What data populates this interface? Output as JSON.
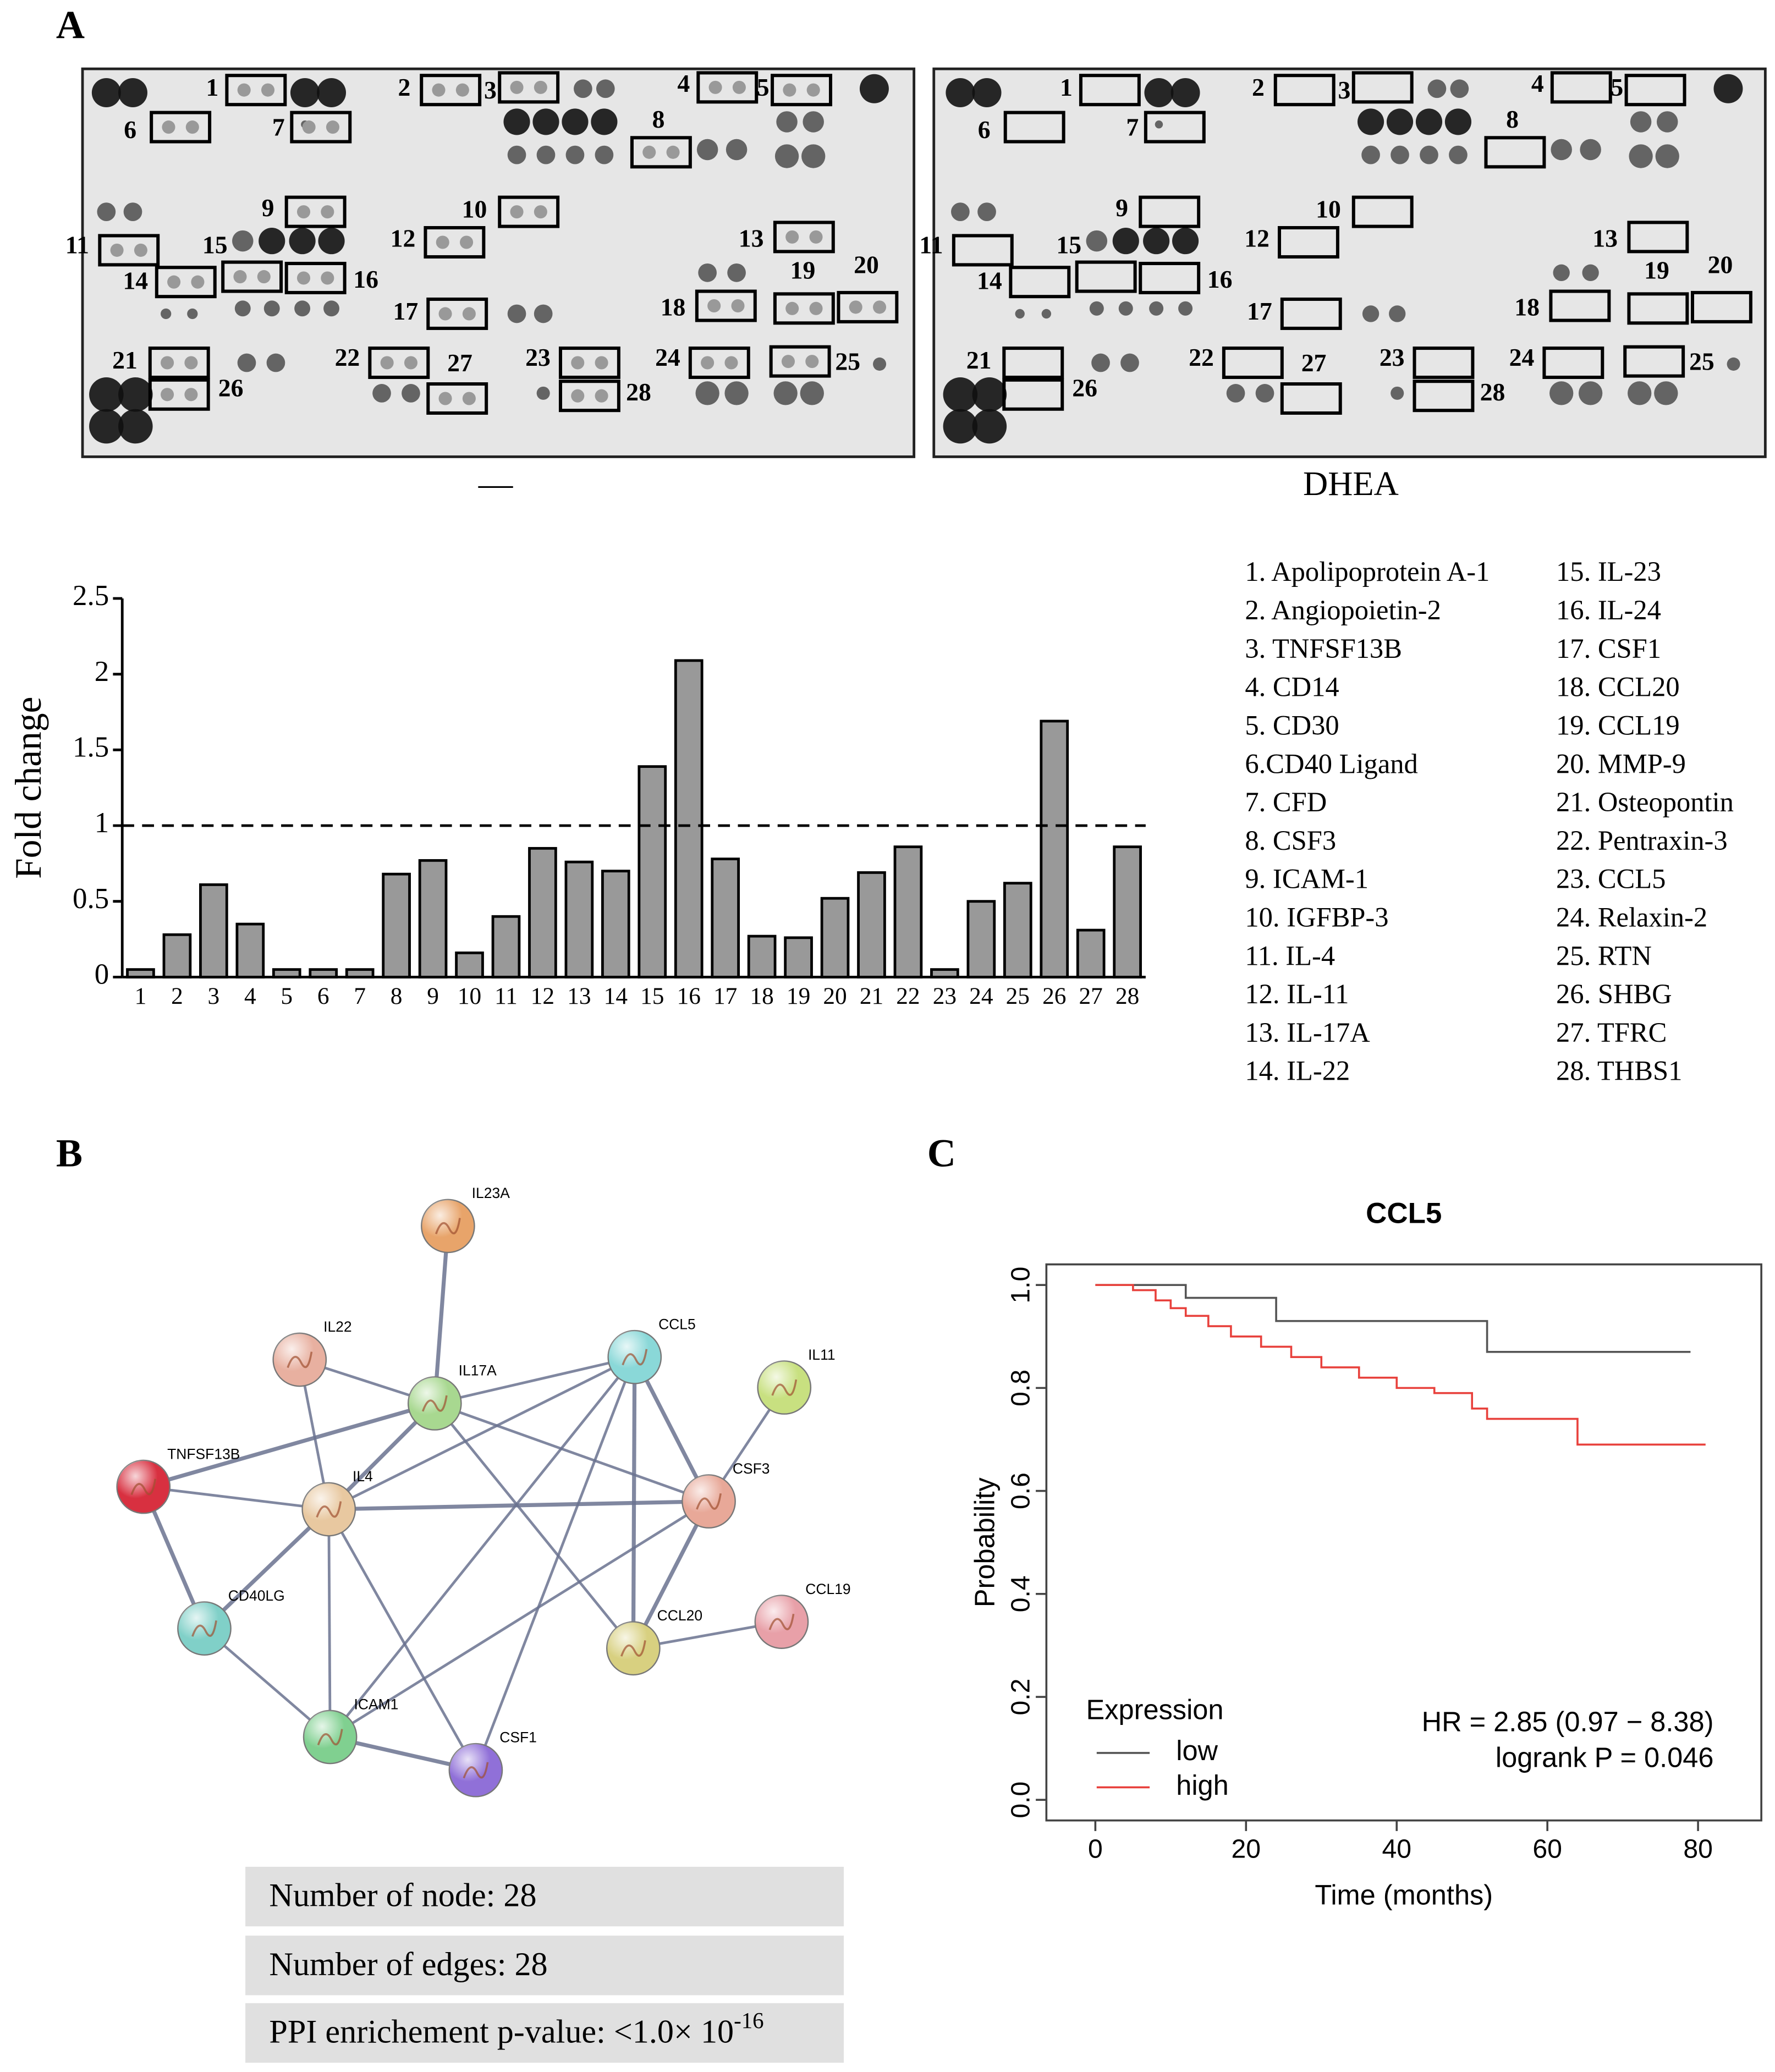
{
  "panel_labels": [
    "A",
    "B",
    "C"
  ],
  "array": {
    "conditions": [
      "—",
      "DHEA"
    ],
    "spot_labels": [
      "1",
      "2",
      "3",
      "4",
      "5",
      "6",
      "7",
      "8",
      "9",
      "10",
      "11",
      "12",
      "13",
      "14",
      "15",
      "16",
      "17",
      "18",
      "19",
      "20",
      "21",
      "22",
      "23",
      "24",
      "25",
      "26",
      "27",
      "28"
    ]
  },
  "chart_data": [
    {
      "type": "bar",
      "ylabel": "Fold change",
      "categories": [
        "1",
        "2",
        "3",
        "4",
        "5",
        "6",
        "7",
        "8",
        "9",
        "10",
        "11",
        "12",
        "13",
        "14",
        "15",
        "16",
        "17",
        "18",
        "19",
        "20",
        "21",
        "22",
        "23",
        "24",
        "25",
        "26",
        "27",
        "28"
      ],
      "values": [
        0.05,
        0.28,
        0.61,
        0.35,
        0.05,
        0.05,
        0.05,
        0.68,
        0.77,
        0.16,
        0.4,
        0.85,
        0.76,
        0.7,
        1.39,
        2.09,
        0.78,
        0.27,
        0.26,
        0.52,
        0.69,
        0.86,
        0.05,
        0.5,
        0.62,
        1.69,
        0.31,
        0.86
      ],
      "color": "#999999",
      "ylim": [
        0,
        2.5
      ],
      "yticks": [
        0,
        0.5,
        1,
        1.5,
        2,
        2.5
      ],
      "reference_line": 1
    },
    {
      "type": "line",
      "title": "CCL5",
      "xlabel": "Time (months)",
      "ylabel": "Probability",
      "legend_title": "Expression",
      "legend": "bottom-left",
      "series": [
        {
          "name": "low",
          "color": "#555555",
          "x": [
            0,
            12,
            12,
            24,
            24,
            52,
            52,
            79
          ],
          "values": [
            1,
            1,
            0.975,
            0.975,
            0.93,
            0.93,
            0.87,
            0.87
          ]
        },
        {
          "name": "high",
          "color": "#e8413c",
          "x": [
            0,
            5,
            5,
            8,
            8,
            10,
            10,
            12,
            12,
            15,
            15,
            18,
            18,
            22,
            22,
            26,
            26,
            30,
            30,
            35,
            35,
            40,
            40,
            45,
            45,
            50,
            50,
            52,
            52,
            64,
            64,
            81
          ],
          "values": [
            1,
            1,
            0.99,
            0.99,
            0.97,
            0.97,
            0.955,
            0.955,
            0.94,
            0.94,
            0.92,
            0.92,
            0.9,
            0.9,
            0.88,
            0.88,
            0.86,
            0.86,
            0.84,
            0.84,
            0.82,
            0.82,
            0.8,
            0.8,
            0.79,
            0.79,
            0.76,
            0.76,
            0.74,
            0.74,
            0.69,
            0.69
          ]
        }
      ],
      "xlim": [
        -6.5,
        88.4
      ],
      "xticks": [
        0,
        20,
        40,
        60,
        80
      ],
      "ylim": [
        -0.04,
        1.04
      ],
      "yticks": [
        {
          "value": 0,
          "label": "0.0"
        },
        0.2,
        0.4,
        0.6,
        0.8,
        {
          "value": 1,
          "label": "1.0"
        }
      ],
      "annotations": [
        "HR = 2.85 (0.97 − 8.38)",
        "logrank P = 0.046"
      ]
    }
  ],
  "protein_list": [
    "1. Apolipoprotein A-1",
    "2. Angiopoietin-2",
    "3. TNFSF13B",
    "4. CD14",
    "5. CD30",
    "6.CD40 Ligand",
    "7. CFD",
    "8. CSF3",
    "9. ICAM-1",
    "10. IGFBP-3",
    "11. IL-4",
    "12. IL-11",
    "13. IL-17A",
    "14. IL-22",
    "15. IL-23",
    "16. IL-24",
    "17. CSF1",
    "18. CCL20",
    "19. CCL19",
    "20. MMP-9",
    "21. Osteopontin",
    "22. Pentraxin-3",
    "23. CCL5",
    "24. Relaxin-2",
    "25. RTN",
    "26. SHBG",
    "27. TFRC",
    "28. THBS1"
  ],
  "network": {
    "nodes": [
      "IL23A",
      "IL22",
      "IL17A",
      "CCL5",
      "IL11",
      "TNFSF13B",
      "IL4",
      "CSF3",
      "CD40LG",
      "CCL20",
      "CCL19",
      "ICAM1",
      "CSF1"
    ]
  },
  "table": {
    "rows": [
      "Number of node: 28",
      "Number of edges: 28",
      "PPI enrichement  p-value: <1.0× 10"
    ],
    "superscript": "-16"
  }
}
